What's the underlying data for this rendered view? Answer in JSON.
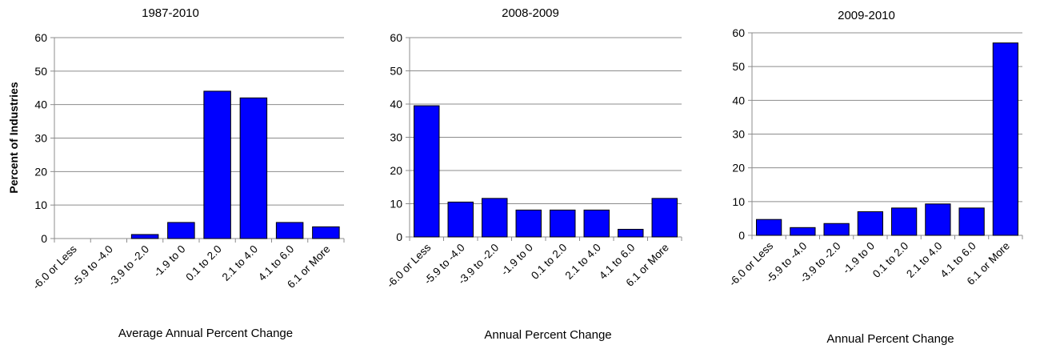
{
  "chart_data": [
    {
      "type": "bar",
      "title": "1987-2010",
      "xlabel": "Average Annual Percent Change",
      "ylabel": "Percent of Industries",
      "ylim": [
        0,
        60
      ],
      "yticks": [
        0,
        10,
        20,
        30,
        40,
        50,
        60
      ],
      "grid": true,
      "categories": [
        "-6.0 or Less",
        "-5.9 to -4.0",
        "-3.9 to -2.0",
        "-1.9 to 0",
        "0.1 to 2.0",
        "2.1 to 4.0",
        "4.1 to 6.0",
        "6.1 or More"
      ],
      "values": [
        0,
        0,
        1.2,
        4.8,
        44,
        42,
        4.8,
        3.5
      ],
      "color": "#0000ff"
    },
    {
      "type": "bar",
      "title": "2008-2009",
      "xlabel": "Annual Percent Change",
      "ylabel": "",
      "ylim": [
        0,
        60
      ],
      "yticks": [
        0,
        10,
        20,
        30,
        40,
        50,
        60
      ],
      "grid": true,
      "categories": [
        "-6.0 or Less",
        "-5.9 to -4.0",
        "-3.9 to -2.0",
        "-1.9 to 0",
        "0.1 to 2.0",
        "2.1 to 4.0",
        "4.1 to 6.0",
        "6.1 or More"
      ],
      "values": [
        39.5,
        10.5,
        11.6,
        8.1,
        8.1,
        8.1,
        2.3,
        11.6
      ],
      "color": "#0000ff"
    },
    {
      "type": "bar",
      "title": "2009-2010",
      "xlabel": "Annual Percent Change",
      "ylabel": "",
      "ylim": [
        0,
        60
      ],
      "yticks": [
        0,
        10,
        20,
        30,
        40,
        50,
        60
      ],
      "grid": true,
      "categories": [
        "-6.0 or Less",
        "-5.9 to -4.0",
        "-3.9 to -2.0",
        "-1.9 to 0",
        "0.1 to 2.0",
        "2.1 to 4.0",
        "4.1 to 6.0",
        "6.1 or More"
      ],
      "values": [
        4.7,
        2.3,
        3.5,
        7.0,
        8.1,
        9.3,
        8.1,
        57
      ],
      "color": "#0000ff"
    }
  ]
}
